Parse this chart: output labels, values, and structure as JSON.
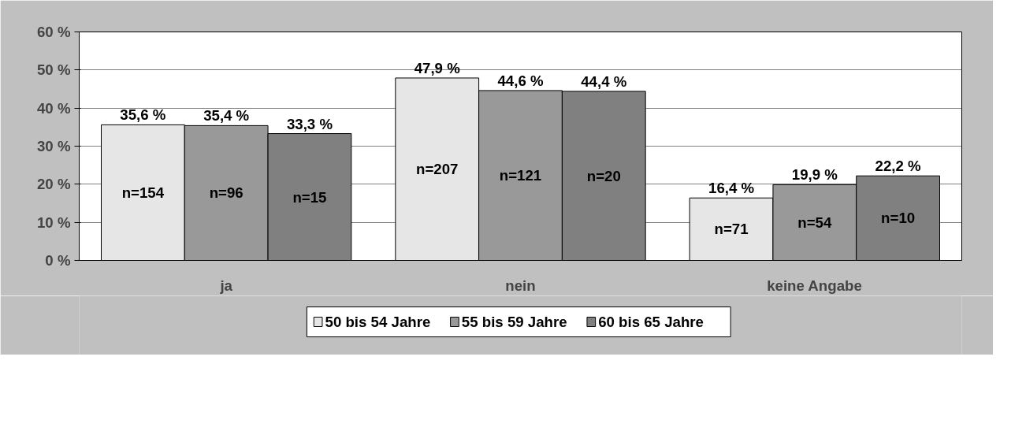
{
  "chart_data": {
    "type": "bar",
    "categories": [
      "ja",
      "nein",
      "keine Angabe"
    ],
    "series": [
      {
        "name": "50 bis 54 Jahre",
        "color": "#e6e6e6",
        "values": [
          35.6,
          47.9,
          16.4
        ],
        "value_labels": [
          "35,6 %",
          "47,9 %",
          "16,4 %"
        ]
      },
      {
        "name": "55 bis 59 Jahre",
        "color": "#999999",
        "values": [
          35.4,
          44.6,
          19.9
        ],
        "value_labels": [
          "35,4 %",
          "44,6 %",
          "19,9 %"
        ]
      },
      {
        "name": "60 bis 65 Jahre",
        "color": "#808080",
        "values": [
          33.3,
          44.4,
          22.2
        ],
        "value_labels": [
          "33,3 %",
          "44,4 %",
          "22,2 %"
        ]
      }
    ],
    "annotations": [
      "n=154",
      "n=207",
      "n=71",
      "n=96",
      "n=121",
      "n=54",
      "n=15",
      "n=20",
      "n=10"
    ],
    "ylim": [
      0,
      60
    ],
    "yticks": [
      {
        "value": 0,
        "label": "0 %"
      },
      {
        "value": 10,
        "label": "10 %"
      },
      {
        "value": 20,
        "label": "20 %"
      },
      {
        "value": 30,
        "label": "30 %"
      },
      {
        "value": 40,
        "label": "40 %"
      },
      {
        "value": 50,
        "label": "50 %"
      },
      {
        "value": 60,
        "label": "60 %"
      }
    ],
    "grid": "y",
    "legend": "bottom"
  }
}
